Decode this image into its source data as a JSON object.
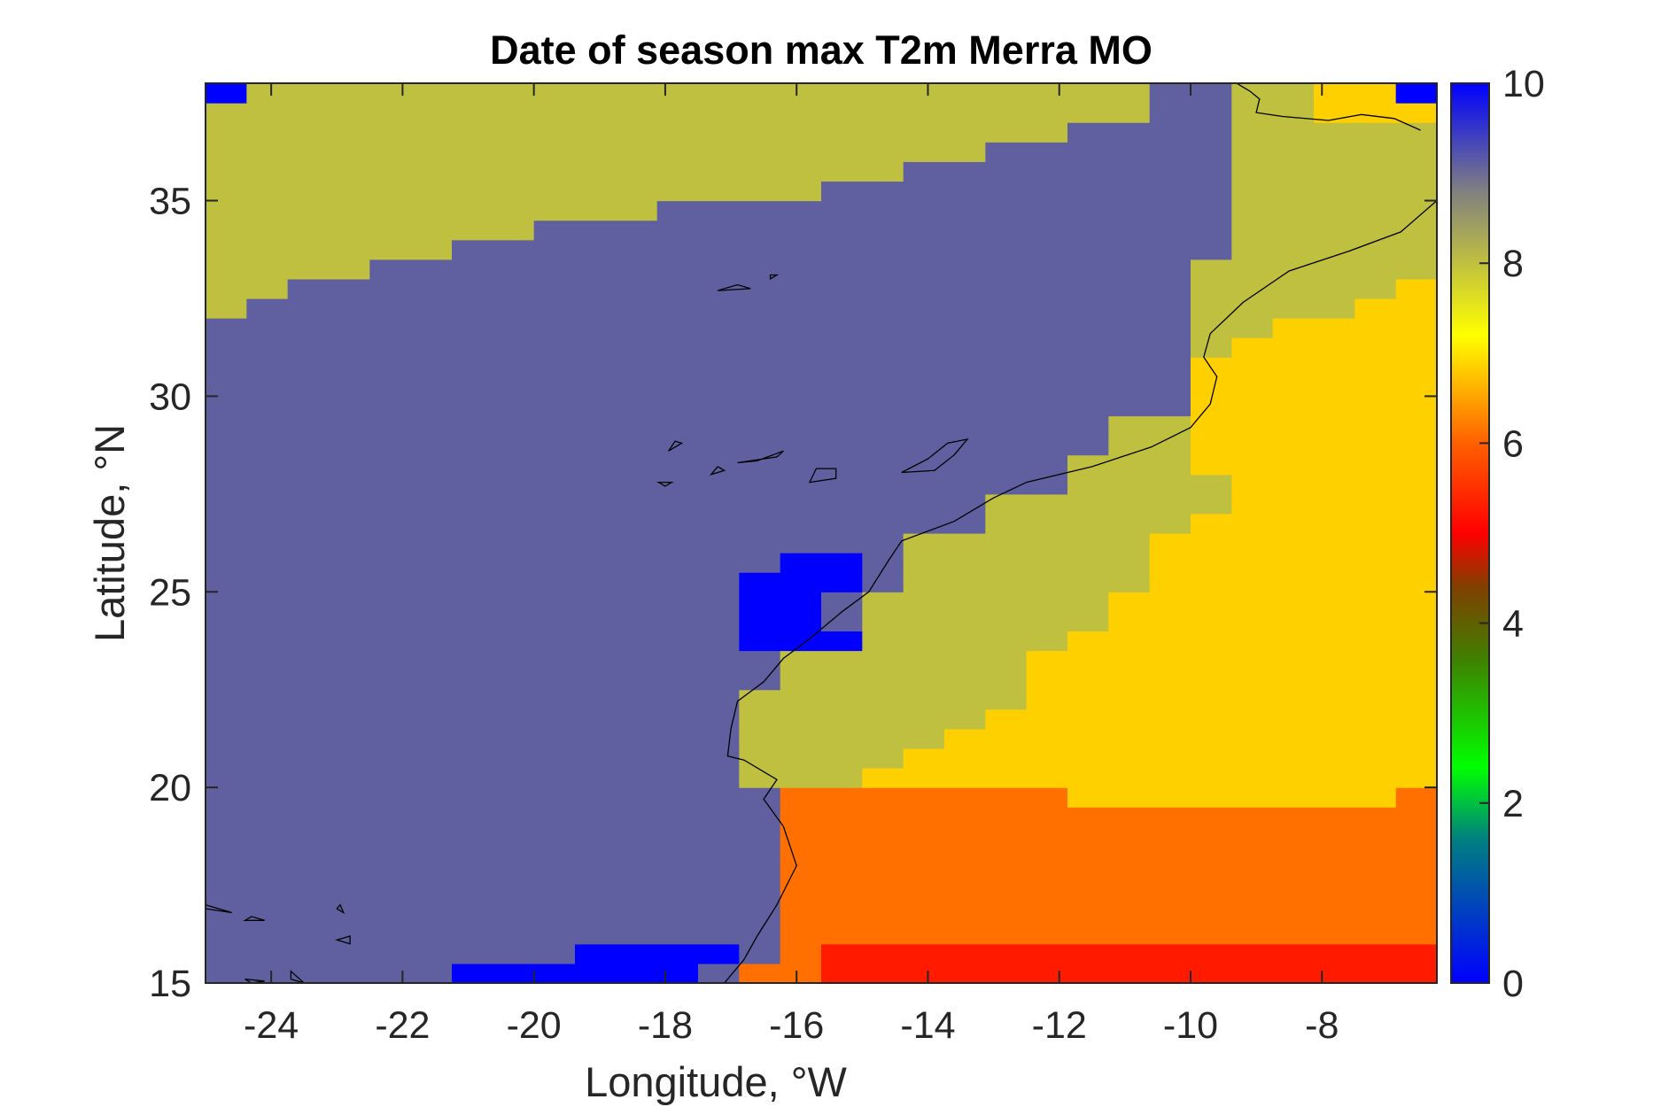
{
  "chart_data": {
    "type": "heatmap",
    "title": "Date of season max T2m Merra MO",
    "xlabel": "Longitude, °W",
    "ylabel": "Latitude, °N",
    "xlim": [
      -25,
      -6.25
    ],
    "ylim": [
      15,
      38
    ],
    "xticks": [
      -24,
      -22,
      -20,
      -18,
      -16,
      -14,
      -12,
      -10,
      -8
    ],
    "yticks": [
      15,
      20,
      25,
      30,
      35
    ],
    "colorbar": {
      "ticks": [
        0,
        2,
        4,
        6,
        8,
        10
      ],
      "clim": [
        0,
        10
      ],
      "colormap": "jet-like",
      "colors": [
        "#0000ff",
        "#0066cc",
        "#00ff00",
        "#808000",
        "#ff0000",
        "#ff6600",
        "#ffd000",
        "#c8c840",
        "#808080",
        "#0000ff"
      ]
    },
    "grid_resolution": {
      "dlon": 0.625,
      "dlat": 0.5
    },
    "value_legend": {
      "season_max_date_8": "#c0c040",
      "season_max_date_9_5": "#6060a0",
      "season_max_date_10": "#0000ff",
      "season_max_date_7": "#ffd000",
      "season_max_date_6": "#ff7000",
      "season_max_date_5": "#ff1a00"
    },
    "regions": [
      {
        "value": 9.5,
        "color": "#6060a0",
        "note": "ocean-west"
      },
      {
        "value": 8,
        "color": "#c0c040",
        "note": "north-ocean-and-coastal-strip"
      },
      {
        "value": 7,
        "color": "#ffd000",
        "note": "interior-east"
      },
      {
        "value": 6,
        "color": "#ff7000",
        "note": "south-east"
      },
      {
        "value": 5,
        "color": "#ff1a00",
        "note": "south-edge"
      },
      {
        "value": 10,
        "color": "#0000ff",
        "note": "isolated-patches"
      }
    ]
  }
}
